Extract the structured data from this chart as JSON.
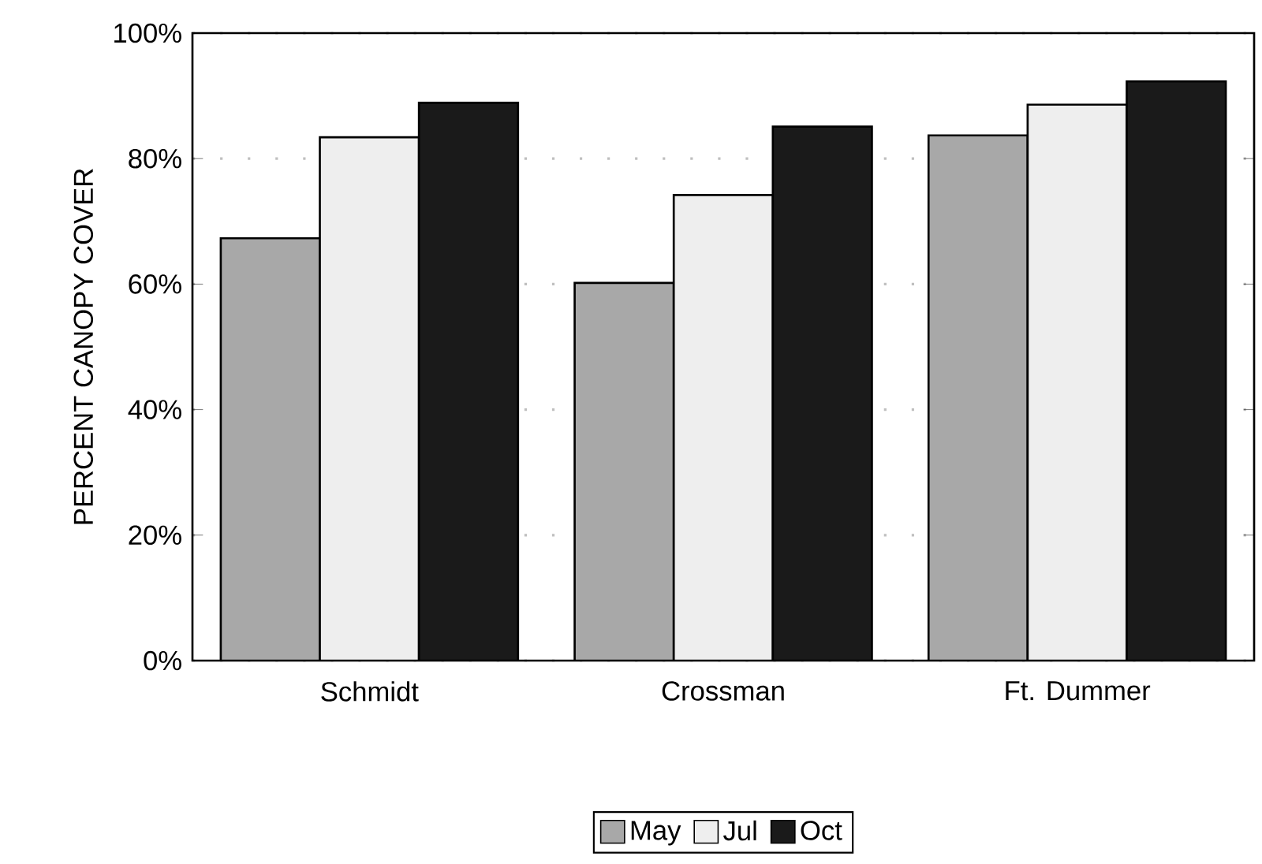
{
  "chart_data": {
    "type": "bar",
    "ylabel": "PERCENT CANOPY COVER",
    "categories": [
      "Schmidt",
      "Crossman",
      "Ft. Dummer"
    ],
    "series": [
      {
        "name": "May",
        "color": "#a8a8a8",
        "values": [
          67.3,
          60.2,
          83.7
        ]
      },
      {
        "name": "Jul",
        "color": "#eeeeee",
        "values": [
          83.4,
          74.2,
          88.6
        ]
      },
      {
        "name": "Oct",
        "color": "#1a1a1a",
        "values": [
          88.9,
          85.1,
          92.3
        ]
      }
    ],
    "ylim": [
      0,
      100
    ],
    "yticks": [
      {
        "value": 0,
        "label": "0%"
      },
      {
        "value": 20,
        "label": "20%"
      },
      {
        "value": 40,
        "label": "40%"
      },
      {
        "value": 60,
        "label": "60%"
      },
      {
        "value": 80,
        "label": "80%"
      },
      {
        "value": 100,
        "label": "100%"
      }
    ],
    "grid": "y",
    "legend": "bottom"
  }
}
